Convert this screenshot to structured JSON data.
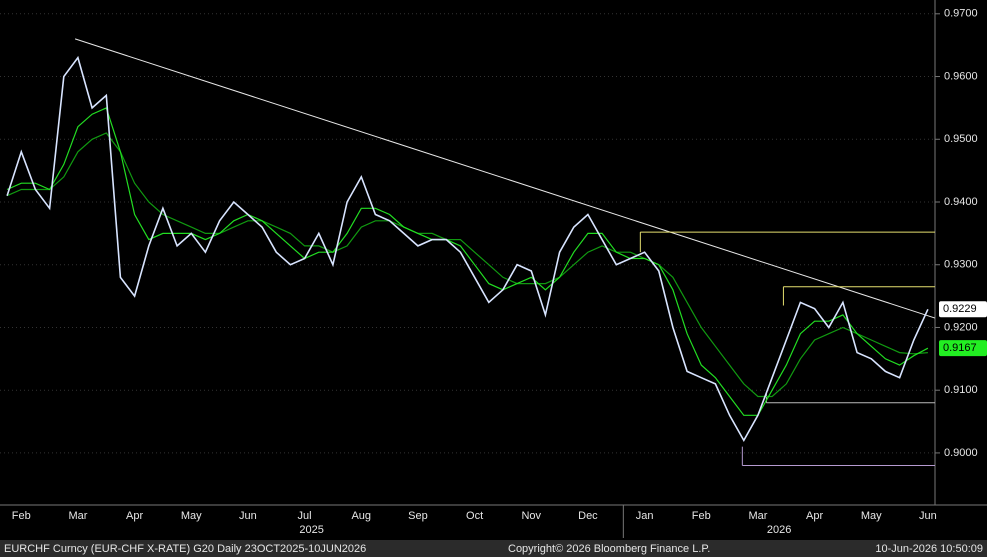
{
  "chart_data": {
    "type": "line",
    "categories": [
      null,
      "Feb",
      null,
      null,
      null,
      "Mar",
      null,
      null,
      null,
      "Apr",
      null,
      null,
      null,
      "May",
      null,
      null,
      null,
      "Jun",
      null,
      null,
      null,
      "Jul",
      null,
      null,
      null,
      "Aug",
      null,
      null,
      null,
      "Sep",
      null,
      null,
      null,
      "Oct",
      null,
      null,
      null,
      "Nov",
      null,
      null,
      null,
      "Dec",
      null,
      null,
      null,
      "Jan",
      null,
      null,
      null,
      "Feb",
      null,
      null,
      null,
      "Mar",
      null,
      null,
      null,
      "Apr",
      null,
      null,
      null,
      "May",
      null,
      null,
      null,
      "Jun"
    ],
    "series": [
      {
        "color": "#d8e4ff",
        "values": [
          0.941,
          0.948,
          0.942,
          0.939,
          0.96,
          0.963,
          0.955,
          0.957,
          0.928,
          0.925,
          0.933,
          0.939,
          0.933,
          0.935,
          0.932,
          0.937,
          0.94,
          0.938,
          0.936,
          0.932,
          0.93,
          0.931,
          0.935,
          0.93,
          0.94,
          0.944,
          0.938,
          0.937,
          0.935,
          0.933,
          0.934,
          0.934,
          0.932,
          0.928,
          0.924,
          0.926,
          0.93,
          0.929,
          0.922,
          0.932,
          0.936,
          0.938,
          0.934,
          0.93,
          0.931,
          0.932,
          0.929,
          0.92,
          0.913,
          0.912,
          0.911,
          0.906,
          0.902,
          0.906,
          0.912,
          0.918,
          0.924,
          0.923,
          0.92,
          0.924,
          0.916,
          0.915,
          0.913,
          0.912,
          0.918,
          0.9229
        ]
      },
      {
        "color": "#22dd22",
        "values": [
          0.942,
          0.943,
          0.943,
          0.942,
          0.946,
          0.952,
          0.954,
          0.955,
          0.948,
          0.938,
          0.934,
          0.935,
          0.935,
          0.935,
          0.934,
          0.935,
          0.937,
          0.938,
          0.937,
          0.935,
          0.933,
          0.931,
          0.932,
          0.932,
          0.935,
          0.939,
          0.939,
          0.938,
          0.936,
          0.935,
          0.934,
          0.934,
          0.933,
          0.93,
          0.927,
          0.926,
          0.927,
          0.928,
          0.926,
          0.928,
          0.932,
          0.935,
          0.935,
          0.932,
          0.931,
          0.931,
          0.93,
          0.926,
          0.919,
          0.914,
          0.912,
          0.909,
          0.906,
          0.906,
          0.91,
          0.914,
          0.919,
          0.921,
          0.921,
          0.922,
          0.919,
          0.917,
          0.915,
          0.914,
          0.9155,
          0.9167
        ]
      },
      {
        "color": "#119a11",
        "values": [
          0.941,
          0.942,
          0.942,
          0.942,
          0.944,
          0.948,
          0.95,
          0.951,
          0.948,
          0.943,
          0.94,
          0.938,
          0.937,
          0.936,
          0.935,
          0.935,
          0.936,
          0.937,
          0.937,
          0.936,
          0.935,
          0.933,
          0.933,
          0.932,
          0.933,
          0.936,
          0.937,
          0.937,
          0.936,
          0.935,
          0.935,
          0.934,
          0.934,
          0.932,
          0.93,
          0.928,
          0.927,
          0.927,
          0.927,
          0.928,
          0.93,
          0.932,
          0.933,
          0.932,
          0.932,
          0.931,
          0.93,
          0.928,
          0.924,
          0.92,
          0.917,
          0.914,
          0.911,
          0.909,
          0.909,
          0.911,
          0.915,
          0.918,
          0.919,
          0.92,
          0.919,
          0.918,
          0.917,
          0.916,
          0.9158,
          0.916
        ]
      }
    ],
    "ylim": [
      0.8917,
      0.9722
    ],
    "yticks": [
      {
        "value": 0.97,
        "label": "0.9700"
      },
      {
        "value": 0.96,
        "label": "0.9600"
      },
      {
        "value": 0.95,
        "label": "0.9500"
      },
      {
        "value": 0.94,
        "label": "0.9400"
      },
      {
        "value": 0.93,
        "label": "0.9300"
      },
      {
        "value": 0.92,
        "label": "0.9200"
      },
      {
        "value": 0.91,
        "label": "0.9100"
      },
      {
        "value": 0.9,
        "label": "0.9000"
      }
    ],
    "grid": true,
    "year_labels": [
      "2025",
      "2026"
    ],
    "year_break": 44,
    "lines": [
      {
        "color": "#e8e8e8",
        "from": [
          4.8,
          0.966
        ],
        "to": [
          65.5,
          0.9215
        ]
      },
      {
        "color": "#e6e070",
        "from": [
          44.7,
          0.932
        ],
        "to": [
          44.7,
          0.9352
        ]
      },
      {
        "color": "#e6e070",
        "from": [
          44.7,
          0.9352
        ],
        "to": [
          65.5,
          0.9352
        ]
      },
      {
        "color": "#e6e070",
        "from": [
          54.8,
          0.9235
        ],
        "to": [
          54.8,
          0.9265
        ]
      },
      {
        "color": "#e6e070",
        "from": [
          54.8,
          0.9265
        ],
        "to": [
          65.5,
          0.9265
        ]
      },
      {
        "color": "#bbbbbb",
        "from": [
          53.6,
          0.9095
        ],
        "to": [
          53.6,
          0.908
        ]
      },
      {
        "color": "#bbbbbb",
        "from": [
          53.6,
          0.908
        ],
        "to": [
          65.5,
          0.908
        ]
      },
      {
        "color": "#b59ad0",
        "from": [
          51.9,
          0.901
        ],
        "to": [
          51.9,
          0.898
        ]
      },
      {
        "color": "#b59ad0",
        "from": [
          51.9,
          0.898
        ],
        "to": [
          65.5,
          0.898
        ]
      }
    ],
    "last_labels": [
      {
        "value": 0.9229,
        "color": "#ffffff"
      },
      {
        "value": 0.9167,
        "color": "#22ee22"
      }
    ],
    "footer": {
      "left": "EURCHF Curncy (EUR-CHF X-RATE) G20 Daily 23OCT2025-10JUN2026",
      "center": "Copyright© 2026 Bloomberg Finance L.P.",
      "right": "10-Jun-2026 10:50:09"
    }
  }
}
